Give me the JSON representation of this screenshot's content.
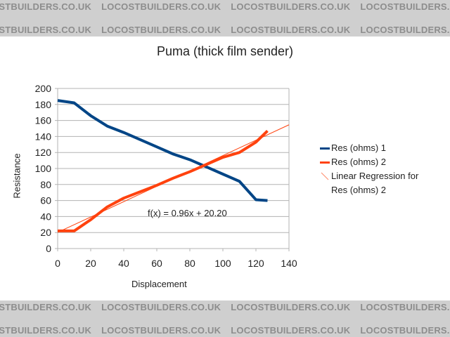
{
  "watermark": {
    "text": "LOCOSTBUILDERS.CO.UK",
    "background": "#cfcfcf",
    "color": "#8d8d8d"
  },
  "chart_data": {
    "type": "line",
    "title": "Puma (thick film sender)",
    "xlabel": "Displacement",
    "ylabel": "Resistance",
    "xlim": [
      0,
      140
    ],
    "ylim": [
      0,
      200
    ],
    "x_ticks": [
      0,
      20,
      40,
      60,
      80,
      100,
      120,
      140
    ],
    "y_ticks": [
      0,
      20,
      40,
      60,
      80,
      100,
      120,
      140,
      160,
      180,
      200
    ],
    "grid": "horizontal",
    "legend_position": "right",
    "series": [
      {
        "name": "Res (ohms) 1",
        "color": "#004586",
        "x": [
          0,
          10,
          20,
          30,
          40,
          50,
          60,
          70,
          80,
          90,
          100,
          110,
          120,
          127
        ],
        "values": [
          185,
          182,
          166,
          153,
          145,
          136,
          127,
          118,
          111,
          102,
          93,
          84,
          61,
          60
        ]
      },
      {
        "name": "Res (ohms) 2",
        "color": "#ff420e",
        "x": [
          0,
          10,
          20,
          30,
          40,
          50,
          60,
          70,
          80,
          90,
          100,
          110,
          120,
          127
        ],
        "values": [
          22,
          22,
          36,
          52,
          63,
          71,
          79,
          88,
          96,
          105,
          114,
          120,
          133,
          147
        ]
      },
      {
        "name": "Linear Regression for Res (ohms) 2",
        "color": "#ff420e",
        "type": "trendline",
        "slope": 0.96,
        "intercept": 20.2,
        "x": [
          0,
          140
        ],
        "values": [
          20.2,
          154.6
        ]
      }
    ],
    "annotations": [
      {
        "text": "f(x) = 0.96x + 20.20",
        "x": 55,
        "y": 45
      }
    ]
  },
  "legend": {
    "items": [
      {
        "label": "Res (ohms) 1",
        "color": "#004586"
      },
      {
        "label": "Res (ohms) 2",
        "color": "#ff420e"
      },
      {
        "label": "Linear Regression for Res (ohms) 2",
        "color": "#ff8a6a"
      }
    ]
  }
}
